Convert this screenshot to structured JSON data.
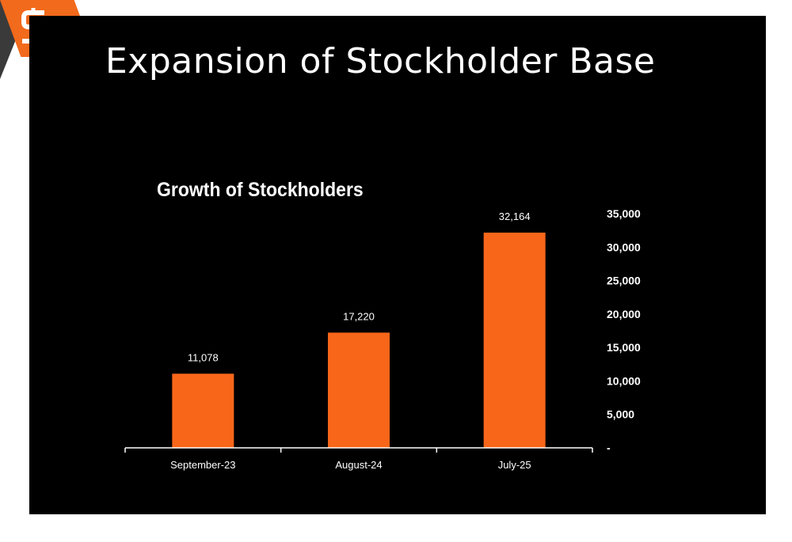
{
  "slide": {
    "title": "Expansion of Stockholder Base",
    "logo_icon": "s-logo-icon"
  },
  "colors": {
    "accent": "#f26a1b",
    "bar": "#f8661a",
    "background": "#000000",
    "text": "#ffffff"
  },
  "chart_data": {
    "type": "bar",
    "title": "Growth of Stockholders",
    "categories": [
      "September-23",
      "August-24",
      "July-25"
    ],
    "values": [
      11078,
      17220,
      32164
    ],
    "value_labels": [
      "11,078",
      "17,220",
      "32,164"
    ],
    "xlabel": "",
    "ylabel": "",
    "ylim": [
      0,
      35000
    ],
    "yticks": [
      0,
      5000,
      10000,
      15000,
      20000,
      25000,
      30000,
      35000
    ],
    "ytick_labels": [
      "-",
      "5,000",
      "10,000",
      "15,000",
      "20,000",
      "25,000",
      "30,000",
      "35,000"
    ],
    "y_axis_side": "right",
    "grid": false,
    "legend": "none"
  }
}
